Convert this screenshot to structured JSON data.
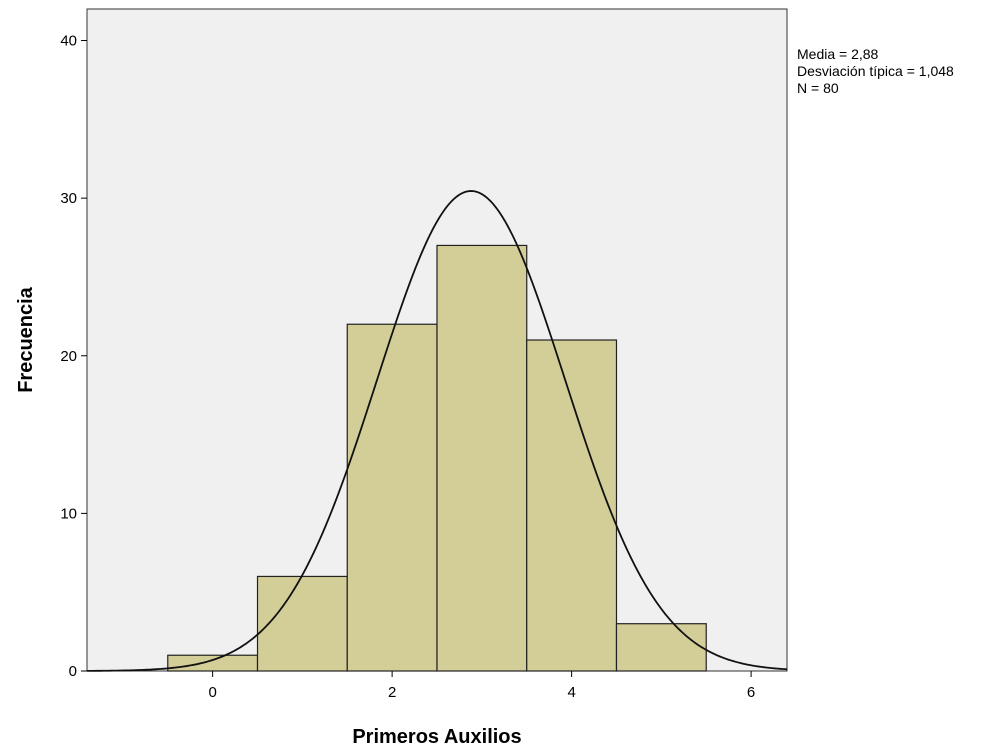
{
  "chart_data": {
    "type": "bar",
    "subtype": "histogram",
    "xlabel": "Primeros Auxilios",
    "ylabel": "Frecuencia",
    "xlim": [
      -1.4,
      6.4
    ],
    "ylim": [
      0,
      42
    ],
    "x_ticks": [
      0,
      2,
      4,
      6
    ],
    "y_ticks": [
      0,
      10,
      20,
      30,
      40
    ],
    "grid": false,
    "bins": [
      {
        "from": -0.5,
        "to": 0.5,
        "value": 1
      },
      {
        "from": 0.5,
        "to": 1.5,
        "value": 6
      },
      {
        "from": 1.5,
        "to": 2.5,
        "value": 22
      },
      {
        "from": 2.5,
        "to": 3.5,
        "value": 27
      },
      {
        "from": 3.5,
        "to": 4.5,
        "value": 21
      },
      {
        "from": 4.5,
        "to": 5.5,
        "value": 3
      }
    ],
    "normal_curve": {
      "mean": 2.88,
      "std": 1.048,
      "n": 80,
      "bin_width": 1
    },
    "stats": {
      "mean_text": "Media = 2,88",
      "std_text": "Desviación típica = 1,048",
      "n_text": "N = 80"
    },
    "colors": {
      "plot_background": "#f0f0f0",
      "bar_fill": "#d3ce97",
      "bar_stroke": "#222222",
      "curve": "#111111"
    }
  }
}
